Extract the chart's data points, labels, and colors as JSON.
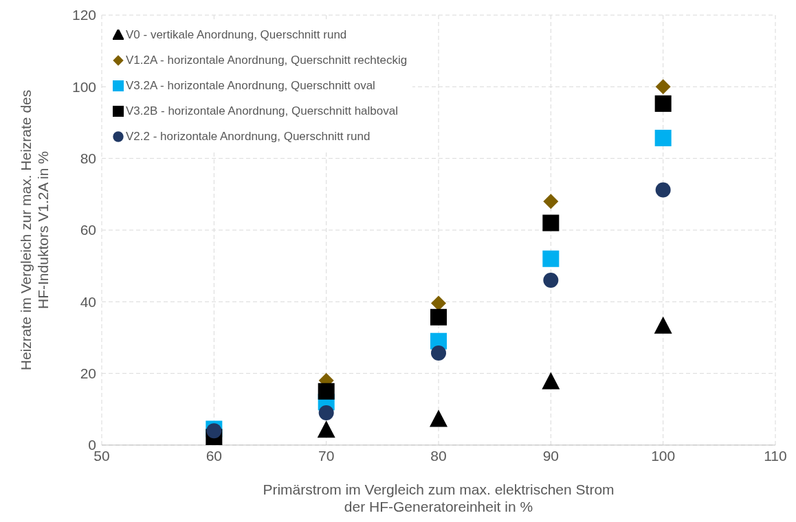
{
  "chart_data": {
    "type": "scatter",
    "xlabel": "Primärstrom im Vergleich zum max. elektrischen Strom\nder HF-Generatoreinheit in %",
    "ylabel": "Heizrate im Vergleich zur max. Heizrate des\nHF-Induktors V1.2A  in %",
    "x": [
      60,
      70,
      80,
      90,
      100
    ],
    "xlim": [
      50,
      110
    ],
    "xticks": [
      50,
      60,
      70,
      80,
      90,
      100,
      110
    ],
    "ylim": [
      0,
      120
    ],
    "yticks": [
      0,
      20,
      40,
      60,
      80,
      100,
      120
    ],
    "grid": true,
    "legend": "top left",
    "series": [
      {
        "name": "V0 - vertikale Anordnung, Querschnitt rund",
        "color": "#000000",
        "marker": "triangle",
        "values": [
          null,
          4,
          7,
          17.5,
          33
        ]
      },
      {
        "name": "V1.2A - horizontale Anordnung, Querschnitt rechteckig",
        "color": "#7f6000",
        "marker": "diamond",
        "values": [
          null,
          18,
          39.6,
          68,
          100
        ]
      },
      {
        "name": "V3.2A - horizontale Anordnung, Querschnitt oval",
        "color": "#00b0f0",
        "marker": "square",
        "values": [
          4.5,
          12,
          29,
          52,
          85.7
        ]
      },
      {
        "name": "V3.2B - horizontale Anordnung, Querschnitt halboval",
        "color": "#000000",
        "marker": "square",
        "values": [
          2.2,
          15,
          35.7,
          62,
          95.3
        ]
      },
      {
        "name": "V2.2 - horizontale Anordnung, Querschnitt rund",
        "color": "#203864",
        "marker": "circle",
        "values": [
          4,
          9,
          25.7,
          46,
          71.2
        ]
      }
    ]
  }
}
